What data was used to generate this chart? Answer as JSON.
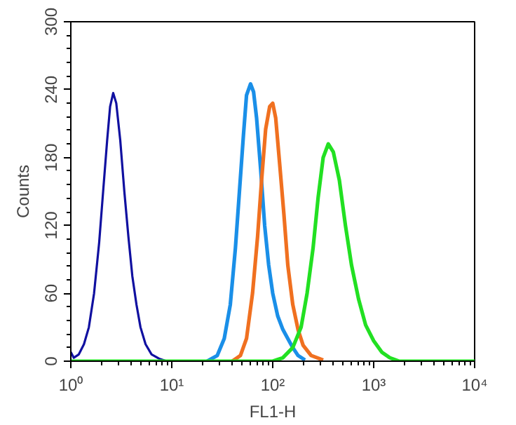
{
  "chart_data": {
    "type": "line",
    "xlabel": "FL1-H",
    "ylabel": "Counts",
    "log": "x",
    "grid": false,
    "marker": "none",
    "line_style": "solid",
    "xlim": [
      1,
      10000
    ],
    "ylim": [
      0,
      300
    ],
    "xticks": [
      {
        "value": 1,
        "label": "10⁰"
      },
      {
        "value": 10,
        "label": "10¹"
      },
      {
        "value": 100,
        "label": "10²"
      },
      {
        "value": 1000,
        "label": "10³"
      },
      {
        "value": 10000,
        "label": "10⁴"
      }
    ],
    "yticks": [
      0,
      60,
      120,
      180,
      240,
      300
    ],
    "series": [
      {
        "color": "#1010a0",
        "x": [
          1,
          1.07,
          1.2,
          1.35,
          1.51,
          1.7,
          1.91,
          2.09,
          2.29,
          2.45,
          2.63,
          2.82,
          3.09,
          3.39,
          3.72,
          4.07,
          4.47,
          4.9,
          5.5,
          6.31,
          7.59,
          8.91
        ],
        "values": [
          8,
          3,
          6,
          15,
          30,
          60,
          105,
          150,
          195,
          225,
          237,
          228,
          195,
          150,
          110,
          75,
          50,
          30,
          15,
          6,
          2,
          0
        ]
      },
      {
        "color": "#1a8fe8",
        "x": [
          22.4,
          28.2,
          33.1,
          38.0,
          42.7,
          46.8,
          51.3,
          55.0,
          60.3,
          64.6,
          69.2,
          75.9,
          83.2,
          91.2,
          100,
          112,
          126,
          141,
          158,
          178,
          209
        ],
        "values": [
          0,
          5,
          20,
          50,
          100,
          150,
          200,
          235,
          245,
          238,
          215,
          170,
          120,
          85,
          60,
          40,
          28,
          20,
          12,
          5,
          1
        ]
      },
      {
        "color": "#f07020",
        "x": [
          39.8,
          47.9,
          55.0,
          63.1,
          70.8,
          77.6,
          85.1,
          93.3,
          100,
          107,
          117,
          129,
          141,
          158,
          178,
          200,
          240,
          316
        ],
        "values": [
          0,
          5,
          20,
          60,
          110,
          160,
          205,
          225,
          228,
          215,
          175,
          130,
          85,
          50,
          28,
          14,
          5,
          1
        ]
      },
      {
        "color": "#22e022",
        "x": [
          1,
          100,
          126,
          158,
          191,
          219,
          251,
          282,
          316,
          355,
          398,
          457,
          525,
          603,
          708,
          832,
          1000,
          1202,
          1445,
          1778,
          10000
        ],
        "values": [
          0,
          0,
          3,
          12,
          30,
          60,
          100,
          145,
          180,
          192,
          185,
          160,
          120,
          85,
          55,
          32,
          18,
          8,
          3,
          0,
          0
        ]
      }
    ]
  }
}
